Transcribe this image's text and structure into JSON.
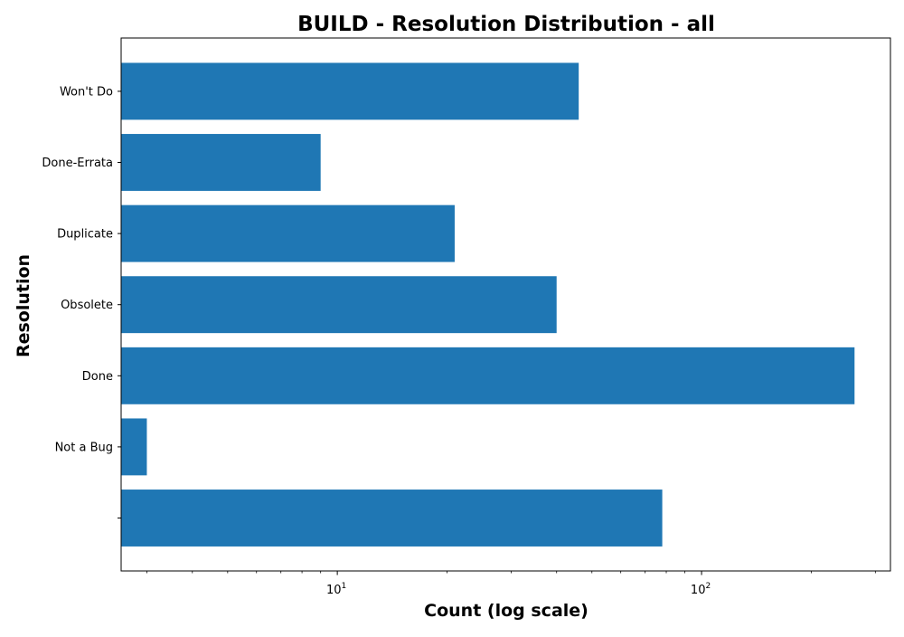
{
  "chart_data": {
    "type": "bar",
    "orientation": "horizontal",
    "title": "BUILD - Resolution Distribution - all",
    "xlabel": "Count (log scale)",
    "ylabel": "Resolution",
    "x_scale": "log",
    "xlim": [
      2.55,
      330
    ],
    "x_ticks": [
      {
        "value": 10,
        "base": "10",
        "exp": "1"
      },
      {
        "value": 100,
        "base": "10",
        "exp": "2"
      }
    ],
    "categories": [
      "",
      "Not a Bug",
      "Done",
      "Obsolete",
      "Duplicate",
      "Done-Errata",
      "Won't Do"
    ],
    "values": [
      78,
      3,
      263,
      40,
      21,
      9,
      46
    ],
    "grid": false,
    "legend": "none",
    "bar_color": "#1f77b4"
  }
}
